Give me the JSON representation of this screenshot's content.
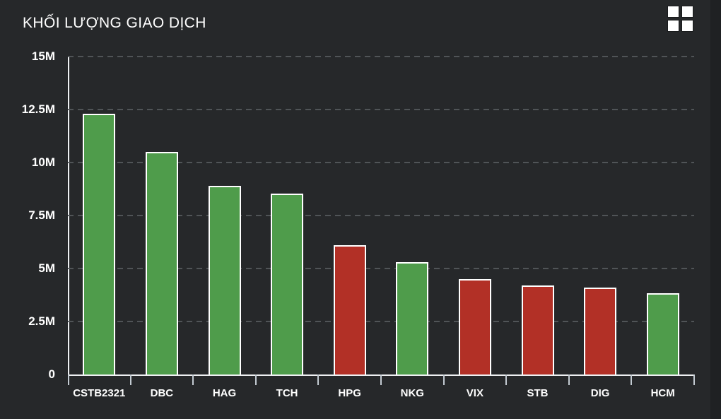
{
  "header": {
    "title": "KHỐI LƯỢNG GIAO DỊCH"
  },
  "icons": {
    "top_right": "grid-2x2-icon"
  },
  "colors": {
    "background": "#26282a",
    "right_edge": "#1f2123",
    "text": "#ffffff",
    "up": "#4f9c4b",
    "down": "#b23026",
    "bar_border": "#ffffff",
    "gridline": "#55595c",
    "axis": "#eef0f2",
    "tick": "#c3cbd2"
  },
  "chart_data": {
    "type": "bar",
    "title": "KHỐI LƯỢNG GIAO DỊCH",
    "categories": [
      "CSTB2321",
      "DBC",
      "HAG",
      "TCH",
      "HPG",
      "NKG",
      "VIX",
      "STB",
      "DIG",
      "HCM"
    ],
    "values": [
      12300000,
      10500000,
      8900000,
      8550000,
      6100000,
      5300000,
      4500000,
      4200000,
      4100000,
      3850000
    ],
    "bar_directions": [
      "up",
      "up",
      "up",
      "up",
      "down",
      "up",
      "down",
      "down",
      "down",
      "up"
    ],
    "ylim": [
      0,
      15000000
    ],
    "ytick_values": [
      0,
      2500000,
      5000000,
      7500000,
      10000000,
      12500000,
      15000000
    ],
    "ytick_labels": [
      "0",
      "2.5M",
      "5M",
      "7.5M",
      "10M",
      "12.5M",
      "15M"
    ],
    "xlabel": "",
    "ylabel": "",
    "grid": "horizontal-dashed",
    "legend": "none"
  }
}
